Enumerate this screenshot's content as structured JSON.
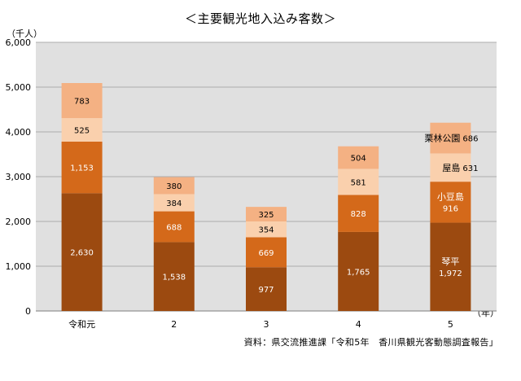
{
  "title": "＜主要観光地入込み客数＞",
  "y_unit": "（千人）",
  "x_unit": "（年）",
  "source": "資料：県交流推進課「令和5年　香川県観光客動態調査報告」",
  "chart_data": {
    "type": "bar",
    "stacked": true,
    "categories": [
      "令和元",
      "2",
      "3",
      "4",
      "5"
    ],
    "series": [
      {
        "name": "琴平",
        "values": [
          2630,
          1538,
          977,
          1765,
          1972
        ],
        "color": "#9c4a10",
        "label_color": "#ffffff"
      },
      {
        "name": "小豆島",
        "values": [
          1153,
          688,
          669,
          828,
          916
        ],
        "color": "#d4691a",
        "label_color": "#ffffff"
      },
      {
        "name": "屋島",
        "values": [
          525,
          384,
          354,
          581,
          631
        ],
        "color": "#fad0ad",
        "label_color": "#000000"
      },
      {
        "name": "栗林公園",
        "values": [
          783,
          380,
          325,
          504,
          686
        ],
        "color": "#f4b183",
        "label_color": "#000000"
      }
    ],
    "ylim": [
      0,
      6000
    ],
    "yticks": [
      "0",
      "1,000",
      "2,000",
      "3,000",
      "4,000",
      "5,000",
      "6,000"
    ],
    "ytick_values": [
      0,
      1000,
      2000,
      3000,
      4000,
      5000,
      6000
    ],
    "grid": true,
    "plot_background": "#e0e0e0",
    "legend": "series names labeled inside the last bar"
  }
}
